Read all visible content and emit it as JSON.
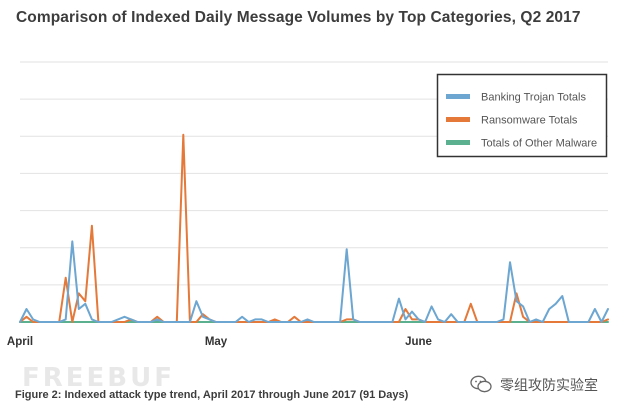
{
  "chart_data": {
    "type": "line",
    "title": "Comparison of Indexed Daily Message Volumes by Top Categories, Q2 2017",
    "xlabel": "",
    "ylabel": "",
    "x_tick_labels": [
      "April",
      "May",
      "June"
    ],
    "x_tick_days": [
      1,
      31,
      62
    ],
    "days": 91,
    "ylim": [
      0,
      100
    ],
    "grid": true,
    "y_tick_labels_visible": false,
    "legend_position": "top-right",
    "series": [
      {
        "name": "Banking Trojan Totals",
        "color": "#6ca6d1",
        "values": [
          0,
          5,
          1,
          0,
          0,
          0,
          0,
          1,
          31,
          5,
          7,
          1,
          0,
          0,
          0,
          1,
          2,
          1,
          0,
          0,
          0,
          1,
          0,
          0,
          0,
          0,
          0,
          8,
          2,
          1,
          0,
          0,
          0,
          0,
          2,
          0,
          1,
          1,
          0,
          0,
          0,
          0,
          0,
          0,
          1,
          0,
          0,
          0,
          0,
          0,
          28,
          1,
          0,
          0,
          0,
          0,
          0,
          0,
          9,
          1,
          4,
          1,
          0,
          6,
          1,
          0,
          3,
          0,
          0,
          0,
          0,
          0,
          0,
          0,
          1,
          23,
          8,
          6,
          0,
          1,
          0,
          5,
          7,
          10,
          0,
          0,
          0,
          0,
          5,
          0,
          5
        ]
      },
      {
        "name": "Ransomware Totals",
        "color": "#e4793a",
        "values": [
          0,
          2,
          0,
          0,
          0,
          0,
          0,
          17,
          0,
          11,
          8,
          37,
          0,
          0,
          0,
          0,
          0,
          1,
          0,
          0,
          0,
          2,
          0,
          0,
          0,
          72,
          0,
          0,
          3,
          1,
          0,
          0,
          0,
          0,
          0,
          0,
          0,
          0,
          0,
          1,
          0,
          0,
          2,
          0,
          0,
          0,
          0,
          0,
          0,
          0,
          1,
          1,
          0,
          0,
          0,
          0,
          0,
          0,
          0,
          5,
          1,
          1,
          0,
          0,
          0,
          0,
          0,
          0,
          0,
          7,
          0,
          0,
          0,
          0,
          0,
          0,
          11,
          2,
          0,
          0,
          0,
          0,
          0,
          0,
          0,
          0,
          0,
          0,
          0,
          0,
          1
        ]
      },
      {
        "name": "Totals of Other Malware",
        "color": "#5bb08f",
        "values": [
          0,
          0,
          0,
          0,
          0,
          0,
          0,
          0,
          0,
          0,
          0,
          0,
          0,
          0,
          0,
          0,
          0,
          0,
          0,
          0,
          0,
          0,
          0,
          0,
          0,
          0,
          0,
          0,
          0,
          0,
          0,
          0,
          0,
          0,
          0,
          0,
          0,
          0,
          0,
          0,
          0,
          0,
          0,
          0,
          0,
          0,
          0,
          0,
          0,
          0,
          0,
          0,
          0,
          0,
          0,
          0,
          0,
          0,
          0,
          0,
          0,
          0,
          0,
          0,
          0,
          0,
          0,
          0,
          0,
          0,
          0,
          0,
          0,
          0,
          0,
          0,
          0,
          0,
          0,
          0,
          0,
          0,
          0,
          0,
          0,
          0,
          0,
          0,
          0,
          0,
          0
        ]
      }
    ]
  },
  "caption": "Figure 2: Indexed attack type trend, April 2017 through June 2017 (91 Days)",
  "watermark": "FREEBUF",
  "brand": {
    "text": "零组攻防实验室",
    "icon": "wechat-icon"
  }
}
